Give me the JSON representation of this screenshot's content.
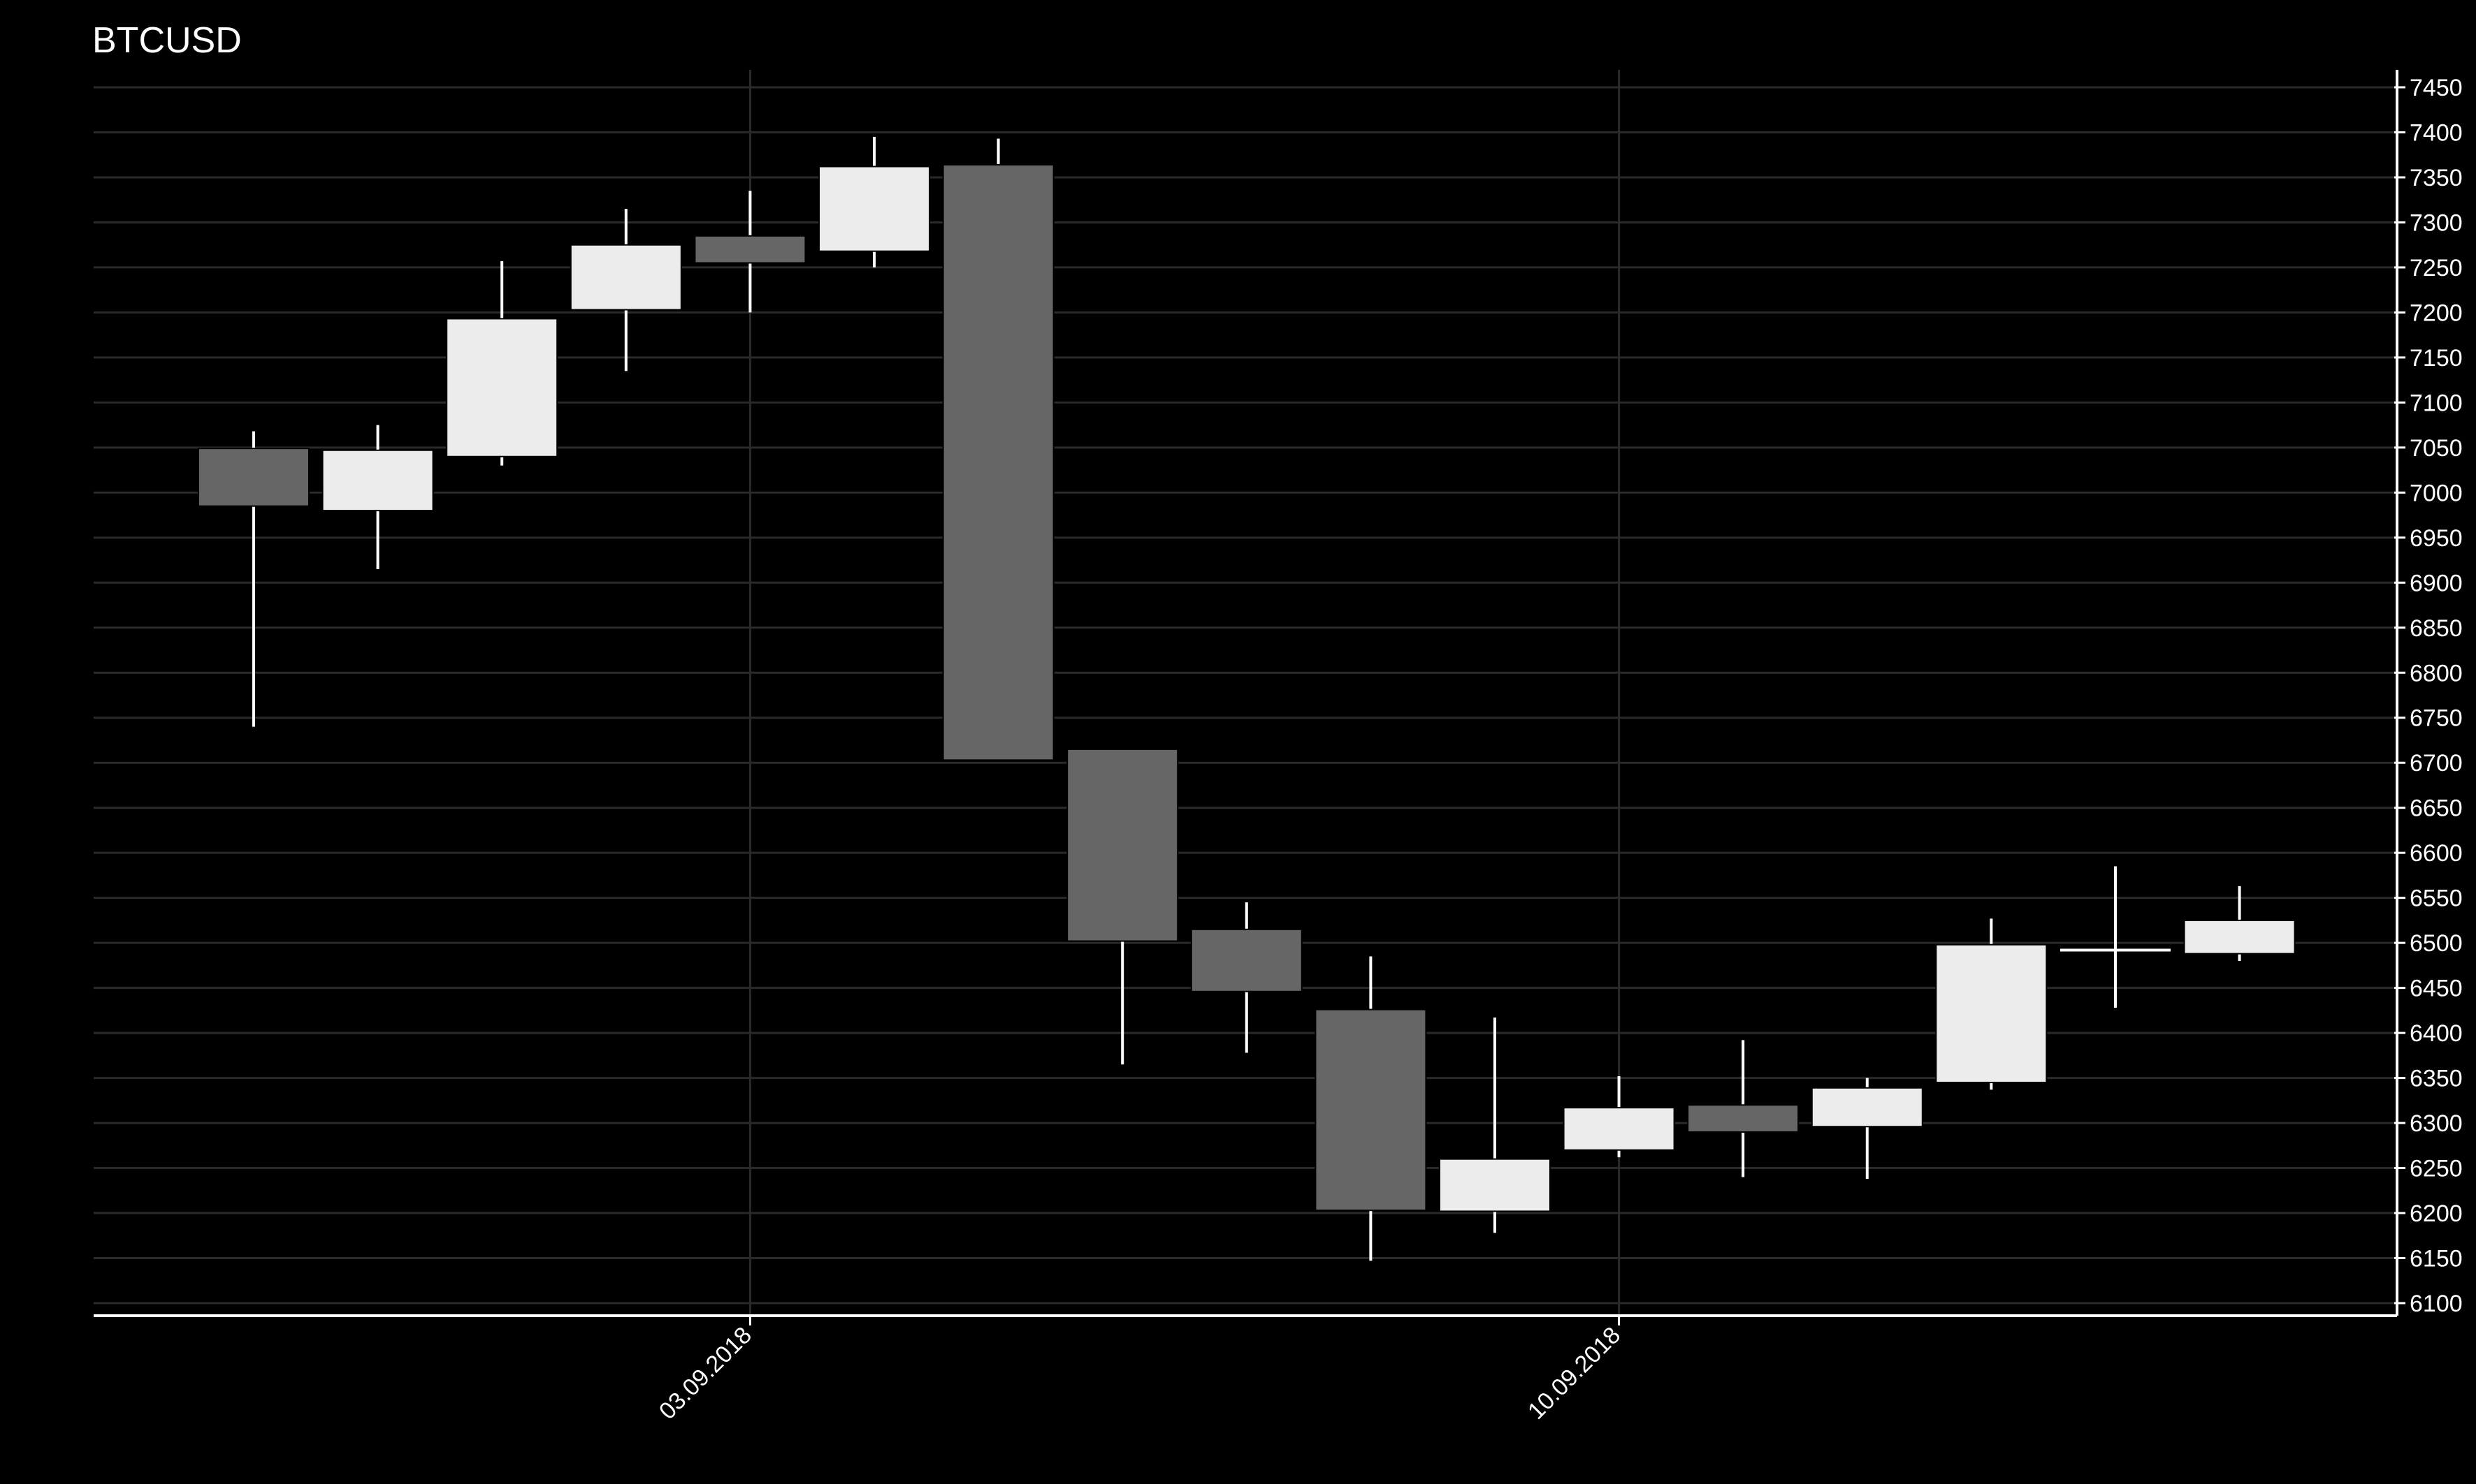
{
  "chart_data": {
    "type": "candlestick",
    "title": "BTCUSD",
    "xlabel": "",
    "ylabel": "",
    "ylim": [
      6085,
      7460
    ],
    "y_ticks": [
      6100,
      6150,
      6200,
      6250,
      6300,
      6350,
      6400,
      6450,
      6500,
      6550,
      6600,
      6650,
      6700,
      6750,
      6800,
      6850,
      6900,
      6950,
      7000,
      7050,
      7100,
      7150,
      7200,
      7250,
      7300,
      7350,
      7400,
      7450
    ],
    "y_axis_position": "right",
    "x_tick_labels": [
      {
        "label": "03.09.2018",
        "at_index": 4
      },
      {
        "label": "10.09.2018",
        "at_index": 11
      }
    ],
    "grid": true,
    "candles": [
      {
        "open": 7049,
        "high": 7068,
        "low": 6740,
        "close": 6985
      },
      {
        "open": 6980,
        "high": 7075,
        "low": 6915,
        "close": 7047
      },
      {
        "open": 7040,
        "high": 7257,
        "low": 7030,
        "close": 7193
      },
      {
        "open": 7203,
        "high": 7315,
        "low": 7135,
        "close": 7275
      },
      {
        "open": 7285,
        "high": 7335,
        "low": 7200,
        "close": 7255
      },
      {
        "open": 7268,
        "high": 7395,
        "low": 7250,
        "close": 7362
      },
      {
        "open": 7364,
        "high": 7393,
        "low": 6703,
        "close": 6703
      },
      {
        "open": 6715,
        "high": 6715,
        "low": 6365,
        "close": 6502
      },
      {
        "open": 6515,
        "high": 6545,
        "low": 6378,
        "close": 6446
      },
      {
        "open": 6426,
        "high": 6485,
        "low": 6147,
        "close": 6203
      },
      {
        "open": 6202,
        "high": 6417,
        "low": 6178,
        "close": 6260
      },
      {
        "open": 6270,
        "high": 6352,
        "low": 6262,
        "close": 6317
      },
      {
        "open": 6320,
        "high": 6392,
        "low": 6240,
        "close": 6290
      },
      {
        "open": 6296,
        "high": 6350,
        "low": 6238,
        "close": 6339
      },
      {
        "open": 6345,
        "high": 6527,
        "low": 6337,
        "close": 6498
      },
      {
        "open": 6490,
        "high": 6585,
        "low": 6428,
        "close": 6492
      },
      {
        "open": 6488,
        "high": 6563,
        "low": 6480,
        "close": 6525
      }
    ],
    "colors": {
      "background": "#000000",
      "up": "#ececec",
      "down": "#666666",
      "wick": "#ffffff",
      "grid": "#2a2a2a",
      "axis": "#ffffff",
      "text": "#ffffff"
    }
  }
}
